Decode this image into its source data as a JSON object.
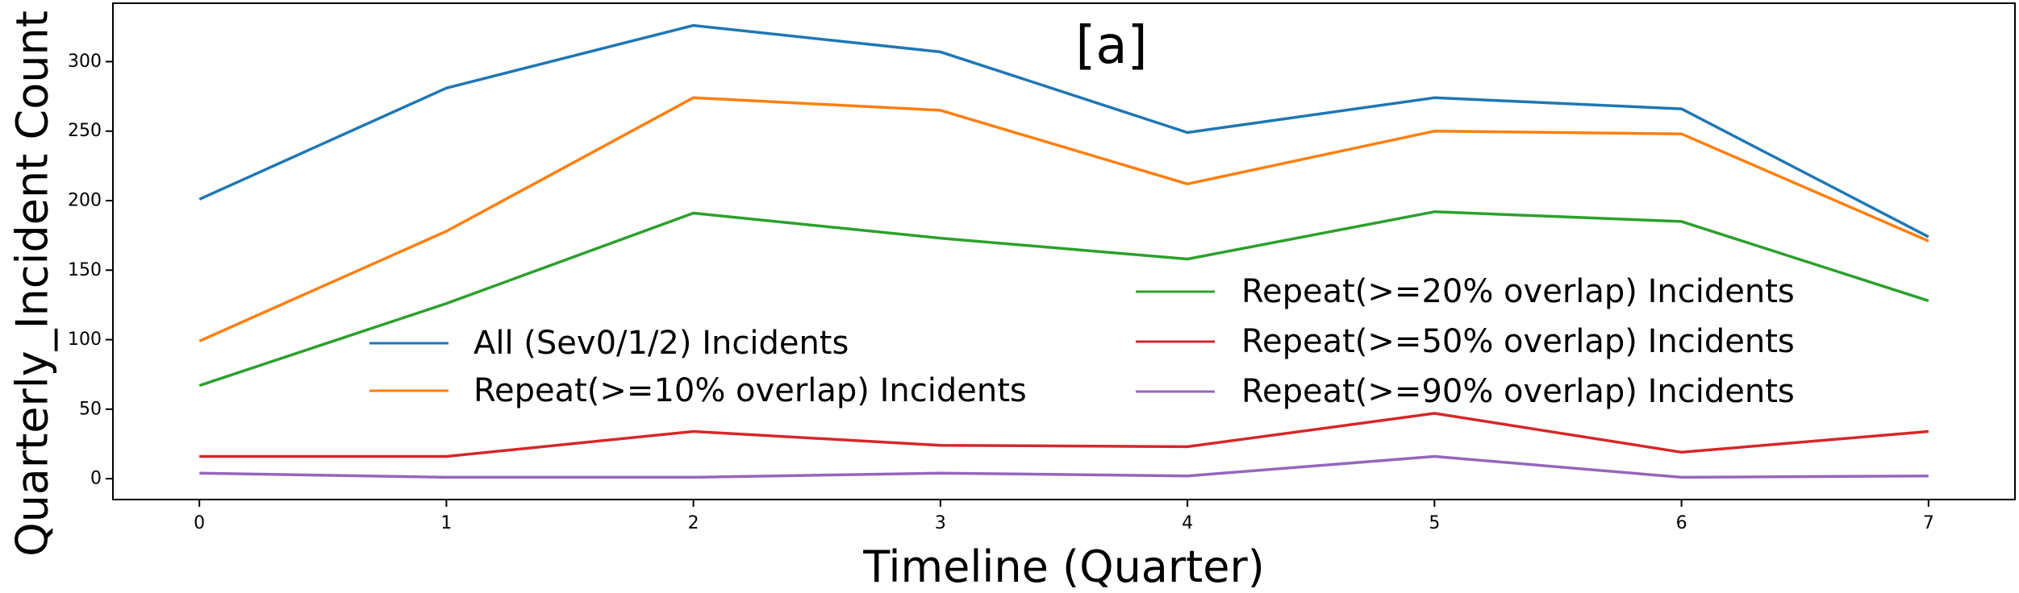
{
  "chart_data": {
    "type": "line",
    "title": "",
    "panel_label": "[a]",
    "xlabel": "Timeline (Quarter)",
    "ylabel": "Quarterly_Incident Count",
    "x": [
      0,
      1,
      2,
      3,
      4,
      5,
      6,
      7
    ],
    "x_ticks": [
      "0",
      "1",
      "2",
      "3",
      "4",
      "5",
      "6",
      "7"
    ],
    "y_ticks": [
      "0",
      "50",
      "100",
      "150",
      "200",
      "250",
      "300"
    ],
    "xlim": [
      -0.35,
      7.35
    ],
    "ylim": [
      -15,
      342
    ],
    "grid": false,
    "series": [
      {
        "name": "All (Sev0/1/2) Incidents",
        "color": "#1f77b4",
        "values": [
          201,
          281,
          326,
          307,
          249,
          274,
          266,
          174
        ]
      },
      {
        "name": "Repeat(>=10% overlap) Incidents",
        "color": "#ff7f0e",
        "values": [
          99,
          178,
          274,
          265,
          212,
          250,
          248,
          171
        ]
      },
      {
        "name": "Repeat(>=20% overlap) Incidents",
        "color": "#2ca02c",
        "values": [
          67,
          126,
          191,
          173,
          158,
          192,
          185,
          128
        ]
      },
      {
        "name": "Repeat(>=50% overlap) Incidents",
        "color": "#d62728",
        "values": [
          16,
          16,
          34,
          24,
          23,
          47,
          19,
          34
        ]
      },
      {
        "name": "Repeat(>=90% overlap) Incidents",
        "color": "#9467bd",
        "values": [
          4,
          1,
          1,
          4,
          2,
          16,
          1,
          2
        ]
      }
    ]
  }
}
